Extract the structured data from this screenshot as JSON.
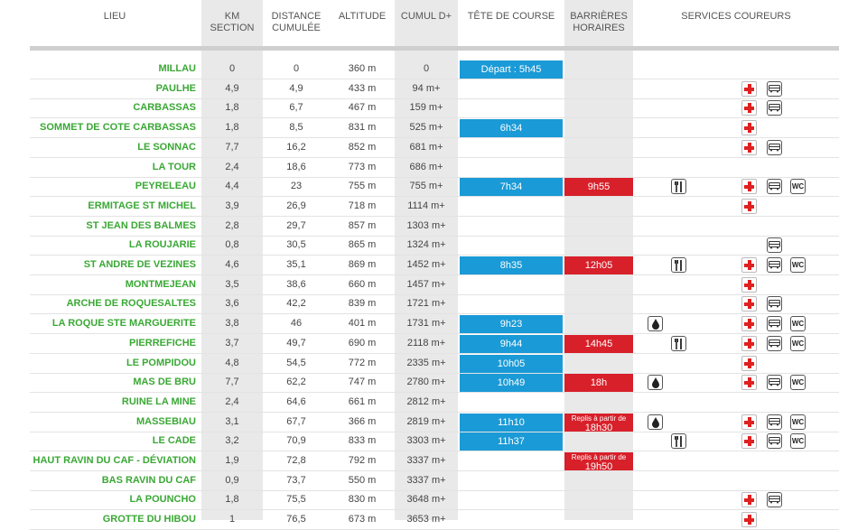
{
  "headers": {
    "lieu": "LIEU",
    "km": "KM\nSECTION",
    "distance": "DISTANCE\nCUMULÉE",
    "altitude": "ALTITUDE",
    "cumul": "CUMUL D+",
    "tete": "TÊTE DE COURSE",
    "barrieres": "BARRIÈRES\nHORAIRES",
    "services": "SERVICES COUREURS"
  },
  "colors": {
    "place": "#3aa835",
    "tete": "#1a9ad6",
    "barriere": "#d7202a"
  },
  "rows": [
    {
      "place": "MILLAU",
      "km": "0",
      "dist": "0",
      "alt": "360 m",
      "cumul": "0",
      "tete": "Départ : 5h45",
      "barr": "",
      "services": []
    },
    {
      "place": "PAULHE",
      "km": "4,9",
      "dist": "4,9",
      "alt": "433 m",
      "cumul": "94 m+",
      "tete": "",
      "barr": "",
      "services": [
        "medical",
        "bus"
      ]
    },
    {
      "place": "CARBASSAS",
      "km": "1,8",
      "dist": "6,7",
      "alt": "467 m",
      "cumul": "159 m+",
      "tete": "",
      "barr": "",
      "services": [
        "medical",
        "bus"
      ]
    },
    {
      "place": "SOMMET DE COTE CARBASSAS",
      "km": "1,8",
      "dist": "8,5",
      "alt": "831 m",
      "cumul": "525 m+",
      "tete": "6h34",
      "barr": "",
      "services": [
        "medical"
      ]
    },
    {
      "place": "LE SONNAC",
      "km": "7,7",
      "dist": "16,2",
      "alt": "852 m",
      "cumul": "681 m+",
      "tete": "",
      "barr": "",
      "services": [
        "medical",
        "bus"
      ]
    },
    {
      "place": "LA TOUR",
      "km": "2,4",
      "dist": "18,6",
      "alt": "773 m",
      "cumul": "686 m+",
      "tete": "",
      "barr": "",
      "services": []
    },
    {
      "place": "PEYRELEAU",
      "km": "4,4",
      "dist": "23",
      "alt": "755 m",
      "cumul": "755 m+",
      "tete": "7h34",
      "barr": "9h55",
      "services": [
        "food",
        "medical",
        "bus",
        "wc"
      ]
    },
    {
      "place": "ERMITAGE ST MICHEL",
      "km": "3,9",
      "dist": "26,9",
      "alt": "718 m",
      "cumul": "1114 m+",
      "tete": "",
      "barr": "",
      "services": [
        "medical"
      ]
    },
    {
      "place": "ST JEAN DES BALMES",
      "km": "2,8",
      "dist": "29,7",
      "alt": "857 m",
      "cumul": "1303 m+",
      "tete": "",
      "barr": "",
      "services": []
    },
    {
      "place": "LA ROUJARIE",
      "km": "0,8",
      "dist": "30,5",
      "alt": "865 m",
      "cumul": "1324 m+",
      "tete": "",
      "barr": "",
      "services": [
        "bus"
      ]
    },
    {
      "place": "ST ANDRE DE VEZINES",
      "km": "4,6",
      "dist": "35,1",
      "alt": "869 m",
      "cumul": "1452 m+",
      "tete": "8h35",
      "barr": "12h05",
      "services": [
        "food",
        "medical",
        "bus",
        "wc"
      ]
    },
    {
      "place": "MONTMEJEAN",
      "km": "3,5",
      "dist": "38,6",
      "alt": "660 m",
      "cumul": "1457 m+",
      "tete": "",
      "barr": "",
      "services": [
        "medical"
      ]
    },
    {
      "place": "ARCHE DE ROQUESALTES",
      "km": "3,6",
      "dist": "42,2",
      "alt": "839 m",
      "cumul": "1721 m+",
      "tete": "",
      "barr": "",
      "services": [
        "medical",
        "bus"
      ]
    },
    {
      "place": "LA ROQUE STE MARGUERITE",
      "km": "3,8",
      "dist": "46",
      "alt": "401 m",
      "cumul": "1731 m+",
      "tete": "9h23",
      "barr": "",
      "services": [
        "water",
        "medical",
        "bus",
        "wc"
      ]
    },
    {
      "place": "PIERREFICHE",
      "km": "3,7",
      "dist": "49,7",
      "alt": "690 m",
      "cumul": "2118 m+",
      "tete": "9h44",
      "barr": "14h45",
      "services": [
        "food",
        "medical",
        "bus",
        "wc"
      ]
    },
    {
      "place": "LE POMPIDOU",
      "km": "4,8",
      "dist": "54,5",
      "alt": "772 m",
      "cumul": "2335 m+",
      "tete": "10h05",
      "barr": "",
      "services": [
        "medical"
      ]
    },
    {
      "place": "MAS DE BRU",
      "km": "7,7",
      "dist": "62,2",
      "alt": "747 m",
      "cumul": "2780 m+",
      "tete": "10h49",
      "barr": "18h",
      "services": [
        "water",
        "medical",
        "bus",
        "wc"
      ]
    },
    {
      "place": "RUINE LA MINE",
      "km": "2,4",
      "dist": "64,6",
      "alt": "661 m",
      "cumul": "2812 m+",
      "tete": "",
      "barr": "",
      "services": []
    },
    {
      "place": "MASSEBIAU",
      "km": "3,1",
      "dist": "67,7",
      "alt": "366 m",
      "cumul": "2819 m+",
      "tete": "11h10",
      "barr": "",
      "barr_note": "Replis à partir de",
      "barr_note_time": "18h30",
      "services": [
        "water",
        "medical",
        "bus",
        "wc"
      ]
    },
    {
      "place": "LE CADE",
      "km": "3,2",
      "dist": "70,9",
      "alt": "833 m",
      "cumul": "3303 m+",
      "tete": "11h37",
      "barr": "",
      "services": [
        "food",
        "medical",
        "bus",
        "wc"
      ]
    },
    {
      "place": "HAUT RAVIN DU CAF - DÉVIATION",
      "km": "1,9",
      "dist": "72,8",
      "alt": "792 m",
      "cumul": "3337 m+",
      "tete": "",
      "barr": "",
      "barr_note": "Replis à partir de",
      "barr_note_time": "19h50",
      "services": []
    },
    {
      "place": "BAS RAVIN DU CAF",
      "km": "0,9",
      "dist": "73,7",
      "alt": "550 m",
      "cumul": "3337 m+",
      "tete": "",
      "barr": "",
      "services": []
    },
    {
      "place": "LA POUNCHO",
      "km": "1,8",
      "dist": "75,5",
      "alt": "830 m",
      "cumul": "3648 m+",
      "tete": "",
      "barr": "",
      "services": [
        "medical",
        "bus"
      ]
    },
    {
      "place": "GROTTE DU HIBOU",
      "km": "1",
      "dist": "76,5",
      "alt": "673 m",
      "cumul": "3653 m+",
      "tete": "",
      "barr": "",
      "services": [
        "medical"
      ]
    }
  ]
}
